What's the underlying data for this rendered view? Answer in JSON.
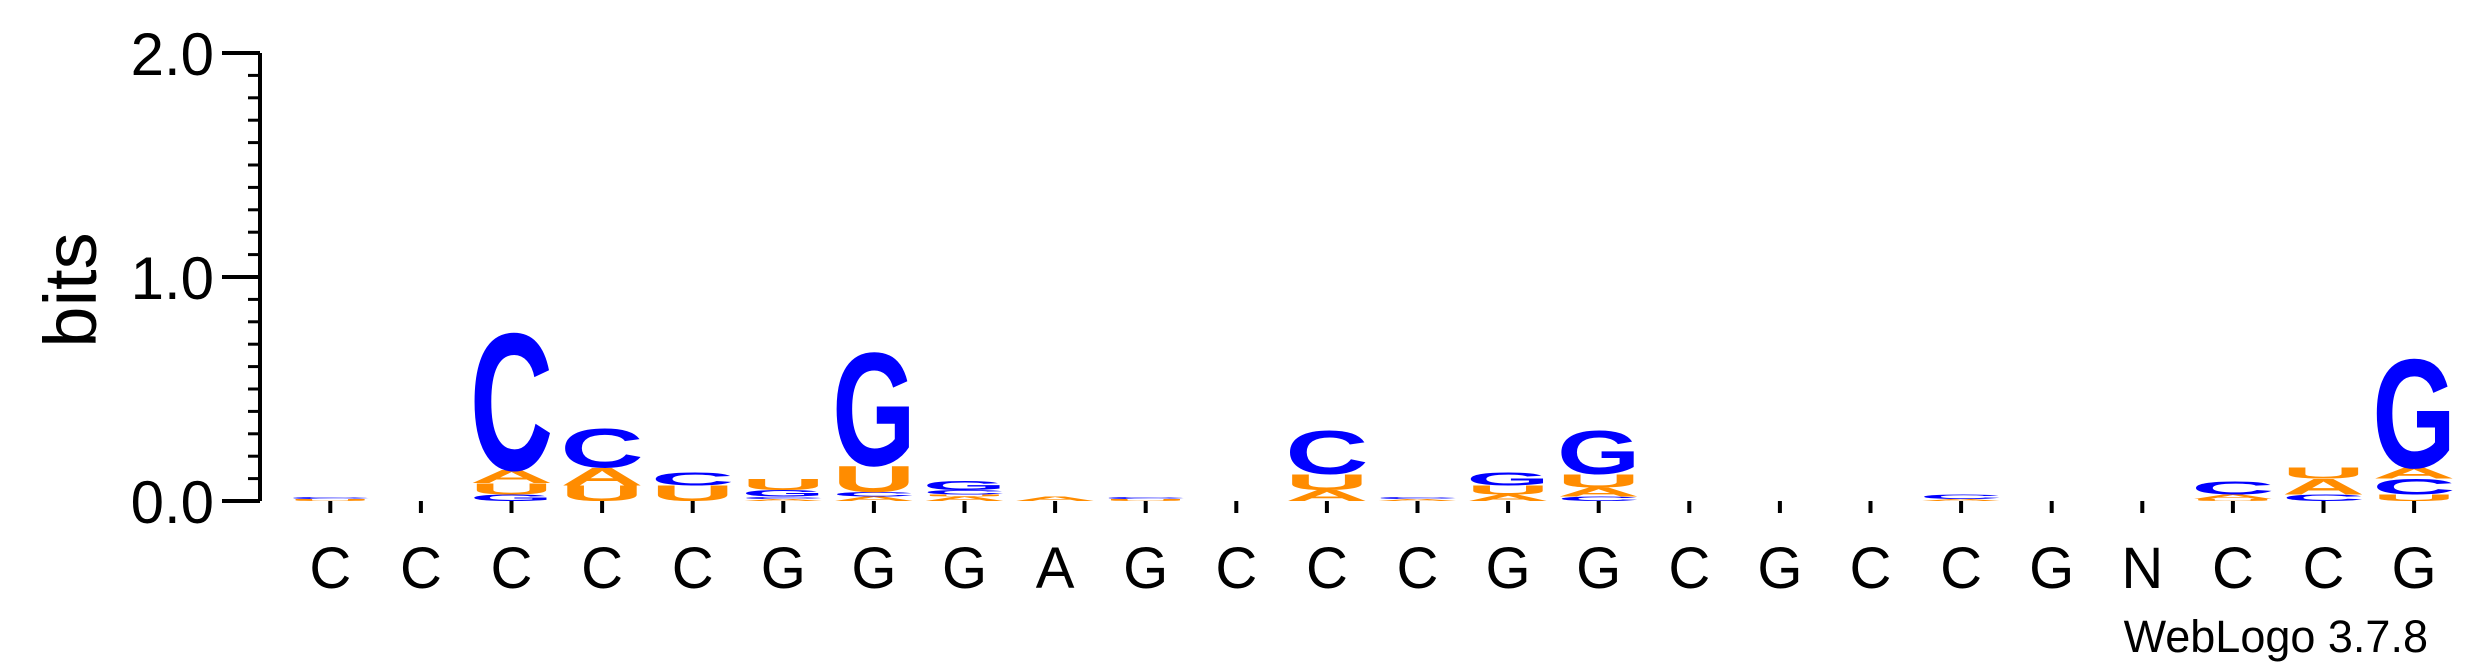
{
  "chart_data": {
    "type": "sequence-logo",
    "title": "",
    "xlabel": "",
    "ylabel": "bits",
    "ylim": [
      0,
      2
    ],
    "yticks": [
      "0.0",
      "1.0",
      "2.0"
    ],
    "yticks_values": [
      0,
      1,
      2
    ],
    "grid": false,
    "credit": "WebLogo 3.7.8",
    "colors": {
      "A": "#ff8c00",
      "U": "#ff8c00",
      "C": "#0000ff",
      "G": "#0000ff",
      "axis": "#000000",
      "text": "#000000"
    },
    "positions": [
      {
        "label": "C",
        "stack": [
          {
            "letter": "U",
            "bits": 0.01
          },
          {
            "letter": "C",
            "bits": 0.01
          }
        ]
      },
      {
        "label": "C",
        "stack": []
      },
      {
        "label": "C",
        "stack": [
          {
            "letter": "G",
            "bits": 0.03
          },
          {
            "letter": "U",
            "bits": 0.05
          },
          {
            "letter": "A",
            "bits": 0.06
          },
          {
            "letter": "C",
            "bits": 0.63
          }
        ]
      },
      {
        "label": "C",
        "stack": [
          {
            "letter": "U",
            "bits": 0.07
          },
          {
            "letter": "A",
            "bits": 0.08
          },
          {
            "letter": "C",
            "bits": 0.18
          }
        ]
      },
      {
        "label": "C",
        "stack": [
          {
            "letter": "U",
            "bits": 0.07
          },
          {
            "letter": "C",
            "bits": 0.06
          }
        ]
      },
      {
        "label": "G",
        "stack": [
          {
            "letter": "A",
            "bits": 0.01
          },
          {
            "letter": "C",
            "bits": 0.01
          },
          {
            "letter": "G",
            "bits": 0.03
          },
          {
            "letter": "U",
            "bits": 0.05
          }
        ]
      },
      {
        "label": "G",
        "stack": [
          {
            "letter": "A",
            "bits": 0.02
          },
          {
            "letter": "C",
            "bits": 0.02
          },
          {
            "letter": "U",
            "bits": 0.12
          },
          {
            "letter": "G",
            "bits": 0.52
          }
        ]
      },
      {
        "label": "G",
        "stack": [
          {
            "letter": "A",
            "bits": 0.02
          },
          {
            "letter": "U",
            "bits": 0.01
          },
          {
            "letter": "C",
            "bits": 0.02
          },
          {
            "letter": "G",
            "bits": 0.04
          }
        ]
      },
      {
        "label": "A",
        "stack": [
          {
            "letter": "A",
            "bits": 0.02
          }
        ]
      },
      {
        "label": "G",
        "stack": [
          {
            "letter": "U",
            "bits": 0.01
          },
          {
            "letter": "C",
            "bits": 0.01
          }
        ]
      },
      {
        "label": "C",
        "stack": []
      },
      {
        "label": "C",
        "stack": [
          {
            "letter": "A",
            "bits": 0.05
          },
          {
            "letter": "U",
            "bits": 0.07
          },
          {
            "letter": "C",
            "bits": 0.2
          }
        ]
      },
      {
        "label": "C",
        "stack": [
          {
            "letter": "A",
            "bits": 0.01
          },
          {
            "letter": "C",
            "bits": 0.01
          }
        ]
      },
      {
        "label": "G",
        "stack": [
          {
            "letter": "A",
            "bits": 0.03
          },
          {
            "letter": "U",
            "bits": 0.04
          },
          {
            "letter": "G",
            "bits": 0.06
          }
        ]
      },
      {
        "label": "G",
        "stack": [
          {
            "letter": "C",
            "bits": 0.02
          },
          {
            "letter": "A",
            "bits": 0.04
          },
          {
            "letter": "U",
            "bits": 0.06
          },
          {
            "letter": "G",
            "bits": 0.2
          }
        ]
      },
      {
        "label": "C",
        "stack": []
      },
      {
        "label": "G",
        "stack": []
      },
      {
        "label": "C",
        "stack": []
      },
      {
        "label": "C",
        "stack": [
          {
            "letter": "A",
            "bits": 0.01
          },
          {
            "letter": "C",
            "bits": 0.02
          }
        ]
      },
      {
        "label": "G",
        "stack": []
      },
      {
        "label": "N",
        "stack": []
      },
      {
        "label": "C",
        "stack": [
          {
            "letter": "U",
            "bits": 0.01
          },
          {
            "letter": "A",
            "bits": 0.02
          },
          {
            "letter": "C",
            "bits": 0.06
          }
        ]
      },
      {
        "label": "C",
        "stack": [
          {
            "letter": "C",
            "bits": 0.03
          },
          {
            "letter": "A",
            "bits": 0.07
          },
          {
            "letter": "U",
            "bits": 0.05
          }
        ]
      },
      {
        "label": "G",
        "stack": [
          {
            "letter": "U",
            "bits": 0.03
          },
          {
            "letter": "C",
            "bits": 0.07
          },
          {
            "letter": "A",
            "bits": 0.05
          },
          {
            "letter": "G",
            "bits": 0.5
          }
        ]
      }
    ]
  }
}
